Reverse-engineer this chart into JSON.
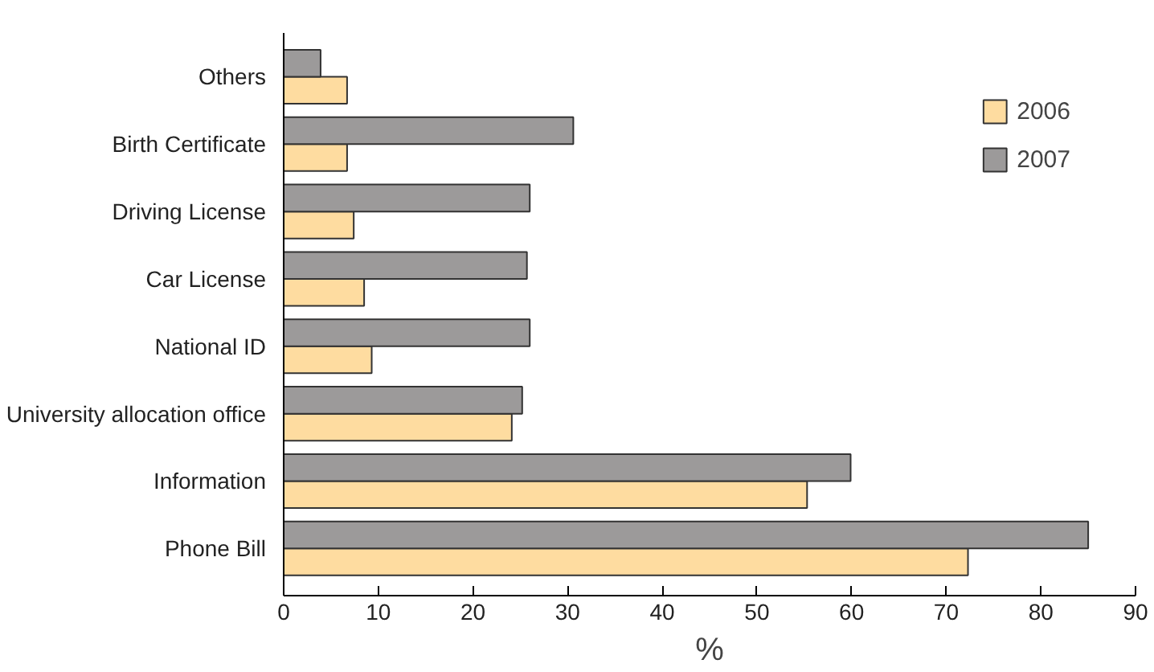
{
  "chart_data": {
    "type": "bar",
    "orientation": "horizontal",
    "xlabel": "%",
    "categories": [
      "Others",
      "Birth Certificate",
      "Driving License",
      "Car License",
      "National ID",
      "University allocation office",
      "Information",
      "Phone Bill"
    ],
    "series": [
      {
        "name": "2006",
        "color": "#fedca0",
        "values": [
          6.7,
          6.7,
          7.4,
          8.5,
          9.3,
          24.1,
          55.3,
          72.3
        ]
      },
      {
        "name": "2007",
        "color": "#9c9a9a",
        "values": [
          3.9,
          30.6,
          26,
          25.7,
          26,
          25.2,
          59.9,
          85
        ]
      }
    ],
    "xlim": [
      0,
      90
    ],
    "xticks": [
      0,
      10,
      20,
      30,
      40,
      50,
      60,
      70,
      80,
      90
    ],
    "grid": false,
    "legend": "top right"
  }
}
